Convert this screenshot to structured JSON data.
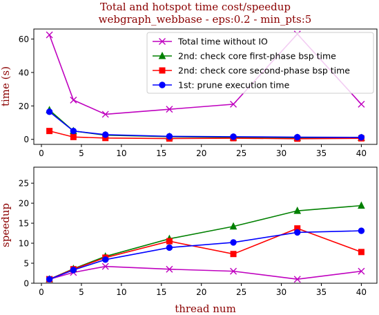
{
  "chart_data": [
    {
      "type": "line",
      "title": "Total and hotspot time cost/speedup",
      "subtitle": "webgraph_webbase - eps:0.2 - min_pts:5",
      "xlabel": "",
      "ylabel": "time (s)",
      "xlim": [
        -0.95,
        41.95
      ],
      "ylim": [
        -3,
        66
      ],
      "xticks": [
        0,
        5,
        10,
        15,
        20,
        25,
        30,
        35,
        40
      ],
      "xticklabels": [
        "0",
        "5",
        "10",
        "15",
        "20",
        "25",
        "30",
        "35",
        "40"
      ],
      "yticks": [
        0,
        20,
        40,
        60
      ],
      "yticklabels": [
        "0",
        "20",
        "40",
        "60"
      ],
      "grid": false,
      "legend_position": "top-right",
      "x": [
        1,
        4,
        8,
        16,
        24,
        32,
        40
      ],
      "series": [
        {
          "name": "Total time without IO",
          "color": "#bf00bf",
          "marker": "x",
          "values": [
            62.5,
            23.5,
            15.0,
            18.0,
            21.0,
            63.0,
            21.0
          ]
        },
        {
          "name": "2nd: check core first-phase bsp time",
          "color": "#008000",
          "marker": "triangle",
          "values": [
            17.5,
            5.0,
            2.5,
            1.6,
            1.2,
            1.0,
            0.9
          ]
        },
        {
          "name": "2nd: check core second-phase bsp time",
          "color": "#ff0000",
          "marker": "square",
          "values": [
            5.0,
            1.4,
            0.8,
            0.5,
            0.7,
            0.4,
            0.6
          ]
        },
        {
          "name": "1st: prune execution time",
          "color": "#0000ff",
          "marker": "circle",
          "values": [
            16.5,
            5.0,
            2.8,
            1.8,
            1.6,
            1.3,
            1.2
          ]
        }
      ]
    },
    {
      "type": "line",
      "xlabel": "thread num",
      "ylabel": "speedup",
      "xlim": [
        -0.95,
        41.95
      ],
      "ylim": [
        0,
        29
      ],
      "xticks": [
        0,
        5,
        10,
        15,
        20,
        25,
        30,
        35,
        40
      ],
      "xticklabels": [
        "0",
        "5",
        "10",
        "15",
        "20",
        "25",
        "30",
        "35",
        "40"
      ],
      "yticks": [
        0,
        5,
        10,
        15,
        20,
        25
      ],
      "yticklabels": [
        "0",
        "5",
        "10",
        "15",
        "20",
        "25"
      ],
      "grid": false,
      "x": [
        1,
        4,
        8,
        16,
        24,
        32,
        40
      ],
      "series": [
        {
          "color": "#bf00bf",
          "marker": "x",
          "values": [
            1.0,
            2.7,
            4.2,
            3.5,
            3.0,
            1.0,
            3.0
          ]
        },
        {
          "color": "#008000",
          "marker": "triangle",
          "values": [
            1.0,
            3.6,
            6.7,
            11.1,
            14.2,
            18.1,
            19.4
          ]
        },
        {
          "color": "#ff0000",
          "marker": "square",
          "values": [
            1.0,
            3.5,
            6.4,
            10.5,
            7.3,
            13.7,
            7.8
          ]
        },
        {
          "color": "#0000ff",
          "marker": "circle",
          "values": [
            1.0,
            3.3,
            5.9,
            8.9,
            10.2,
            12.7,
            13.1
          ]
        }
      ]
    }
  ]
}
